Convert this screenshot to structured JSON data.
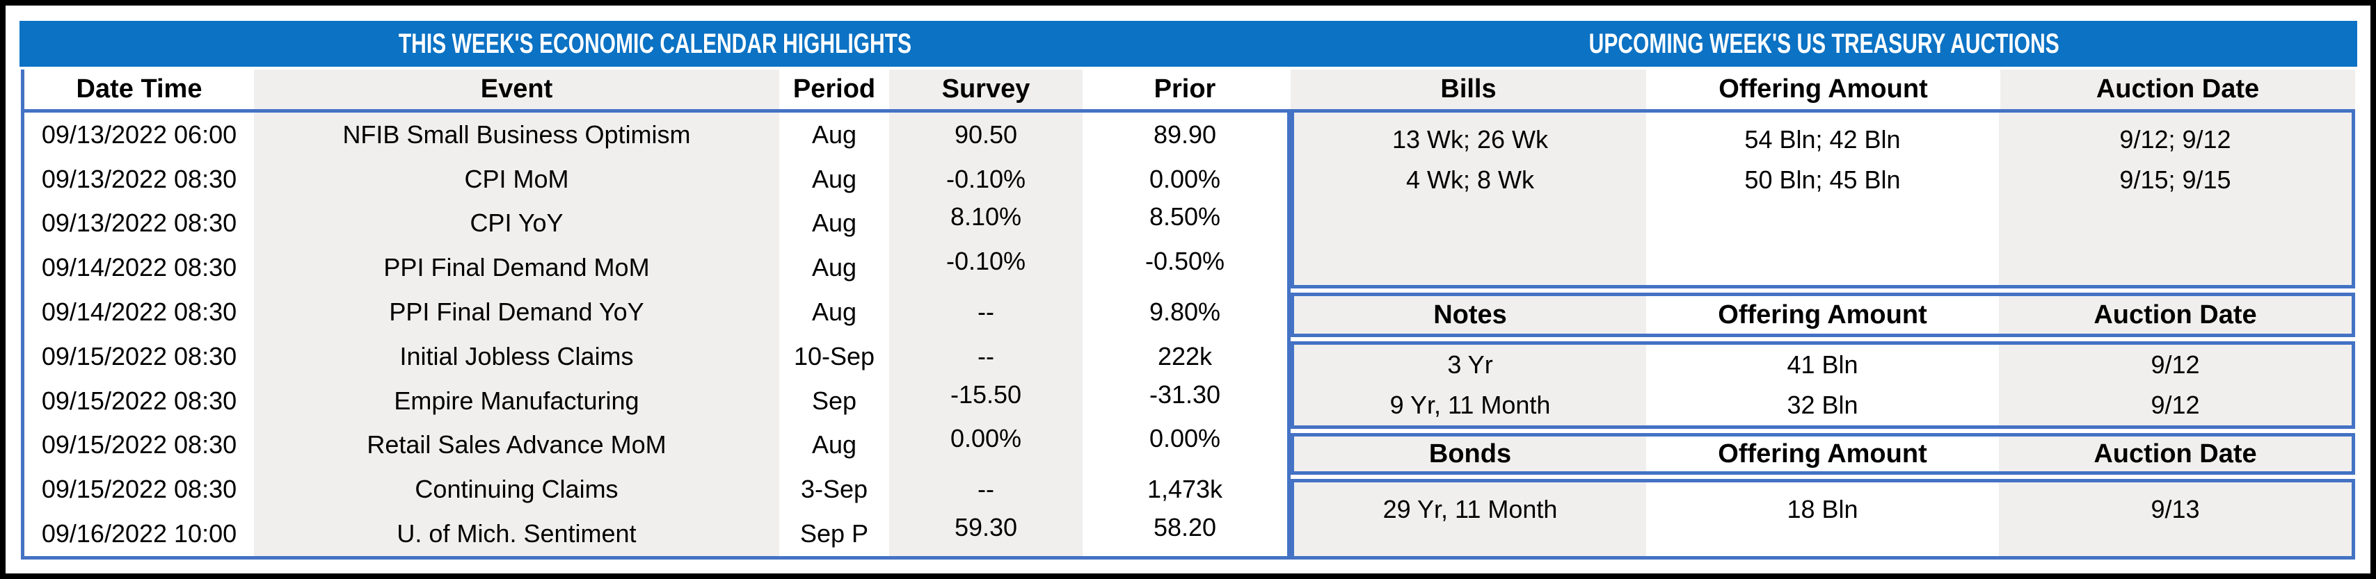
{
  "colors": {
    "banner_blue": "#0b72c4",
    "table_border_blue": "#4472c4",
    "column_stripe_gray": "#f0efee",
    "outer_border_black": "#000000",
    "title_text_white": "#ffffff"
  },
  "banner": {
    "left_title": "THIS WEEK'S ECONOMIC CALENDAR HIGHLIGHTS",
    "right_title": "UPCOMING WEEK'S US TREASURY AUCTIONS"
  },
  "calendar": {
    "columns": [
      "Date Time",
      "Event",
      "Period",
      "Survey",
      "Prior"
    ],
    "rows": [
      {
        "date_time": "09/13/2022 06:00",
        "event": "NFIB Small Business Optimism",
        "period": "Aug",
        "survey": "90.50",
        "prior": "89.90"
      },
      {
        "date_time": "09/13/2022 08:30",
        "event": "CPI MoM",
        "period": "Aug",
        "survey": "-0.10%",
        "prior": "0.00%"
      },
      {
        "date_time": "09/13/2022 08:30",
        "event": "CPI YoY",
        "period": "Aug",
        "survey": "8.10%",
        "prior": "8.50%"
      },
      {
        "date_time": "09/14/2022 08:30",
        "event": "PPI Final Demand MoM",
        "period": "Aug",
        "survey": "-0.10%",
        "prior": "-0.50%"
      },
      {
        "date_time": "09/14/2022 08:30",
        "event": "PPI Final Demand YoY",
        "period": "Aug",
        "survey": "--",
        "prior": "9.80%"
      },
      {
        "date_time": "09/15/2022 08:30",
        "event": "Initial Jobless Claims",
        "period": "10-Sep",
        "survey": "--",
        "prior": "222k"
      },
      {
        "date_time": "09/15/2022 08:30",
        "event": "Empire Manufacturing",
        "period": "Sep",
        "survey": "-15.50",
        "prior": "-31.30"
      },
      {
        "date_time": "09/15/2022 08:30",
        "event": "Retail Sales Advance MoM",
        "period": "Aug",
        "survey": "0.00%",
        "prior": "0.00%"
      },
      {
        "date_time": "09/15/2022 08:30",
        "event": "Continuing Claims",
        "period": "3-Sep",
        "survey": "--",
        "prior": "1,473k"
      },
      {
        "date_time": "09/16/2022 10:00",
        "event": "U. of Mich. Sentiment",
        "period": "Sep P",
        "survey": "59.30",
        "prior": "58.20"
      }
    ]
  },
  "auctions": {
    "bills": {
      "header": [
        "Bills",
        "Offering Amount",
        "Auction Date"
      ],
      "rows": [
        [
          "13 Wk; 26 Wk",
          "54 Bln; 42 Bln",
          "9/12; 9/12"
        ],
        [
          "4 Wk; 8 Wk",
          "50 Bln; 45 Bln",
          "9/15; 9/15"
        ]
      ]
    },
    "notes": {
      "header": [
        "Notes",
        "Offering Amount",
        "Auction Date"
      ],
      "rows": [
        [
          "3 Yr",
          "41 Bln",
          "9/12"
        ],
        [
          "9 Yr, 11 Month",
          "32 Bln",
          "9/12"
        ]
      ]
    },
    "bonds": {
      "header": [
        "Bonds",
        "Offering Amount",
        "Auction Date"
      ],
      "rows": [
        [
          "29 Yr, 11 Month",
          "18 Bln",
          "9/13"
        ]
      ]
    }
  }
}
